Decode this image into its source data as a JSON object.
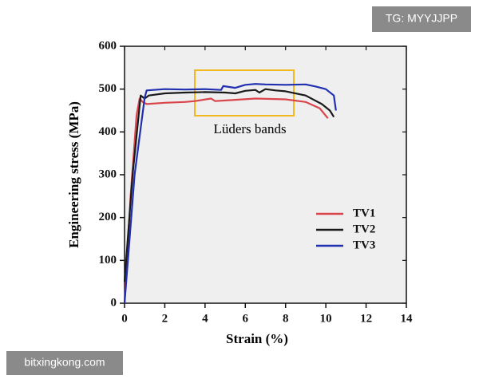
{
  "chart_data": {
    "type": "line",
    "xlabel": "Strain (%)",
    "ylabel": "Engineering stress (MPa)",
    "annotation": "Lüders bands",
    "xlim": [
      0,
      14
    ],
    "xticks": [
      0,
      2,
      4,
      6,
      8,
      10,
      12,
      14
    ],
    "ylim": [
      0,
      600
    ],
    "yticks": [
      0,
      100,
      200,
      300,
      400,
      500,
      600
    ],
    "legend": "right",
    "series": [
      {
        "name": "TV1",
        "color": "#d9454a",
        "x": [
          0,
          0.3,
          0.6,
          0.75,
          0.9,
          1.1,
          2,
          3,
          3.5,
          4.3,
          4.5,
          5.5,
          6.5,
          8,
          9,
          9.7,
          10.1
        ],
        "values": [
          0,
          250,
          440,
          478,
          470,
          465,
          468,
          470,
          472,
          478,
          472,
          475,
          478,
          476,
          470,
          455,
          432
        ]
      },
      {
        "name": "TV2",
        "color": "#1a1a1a",
        "x": [
          0,
          0.4,
          0.8,
          1.0,
          1.2,
          2,
          3,
          4,
          5,
          5.5,
          6,
          6.5,
          6.7,
          7,
          7.5,
          8,
          9,
          9.8,
          10.2,
          10.4
        ],
        "values": [
          50,
          300,
          485,
          478,
          485,
          490,
          492,
          493,
          492,
          490,
          496,
          498,
          492,
          500,
          497,
          495,
          485,
          465,
          450,
          435
        ]
      },
      {
        "name": "TV3",
        "color": "#2030b0",
        "x": [
          0,
          0.5,
          1.0,
          1.1,
          2,
          3,
          4,
          4.8,
          4.9,
          5.5,
          6,
          6.5,
          7,
          8,
          9,
          9.5,
          10,
          10.4,
          10.5
        ],
        "values": [
          0,
          300,
          480,
          497,
          500,
          499,
          500,
          498,
          507,
          503,
          510,
          512,
          511,
          510,
          511,
          506,
          500,
          485,
          450
        ]
      }
    ]
  },
  "watermarks": [
    "TG: MYYJJPP",
    "bitxingkong.com"
  ]
}
